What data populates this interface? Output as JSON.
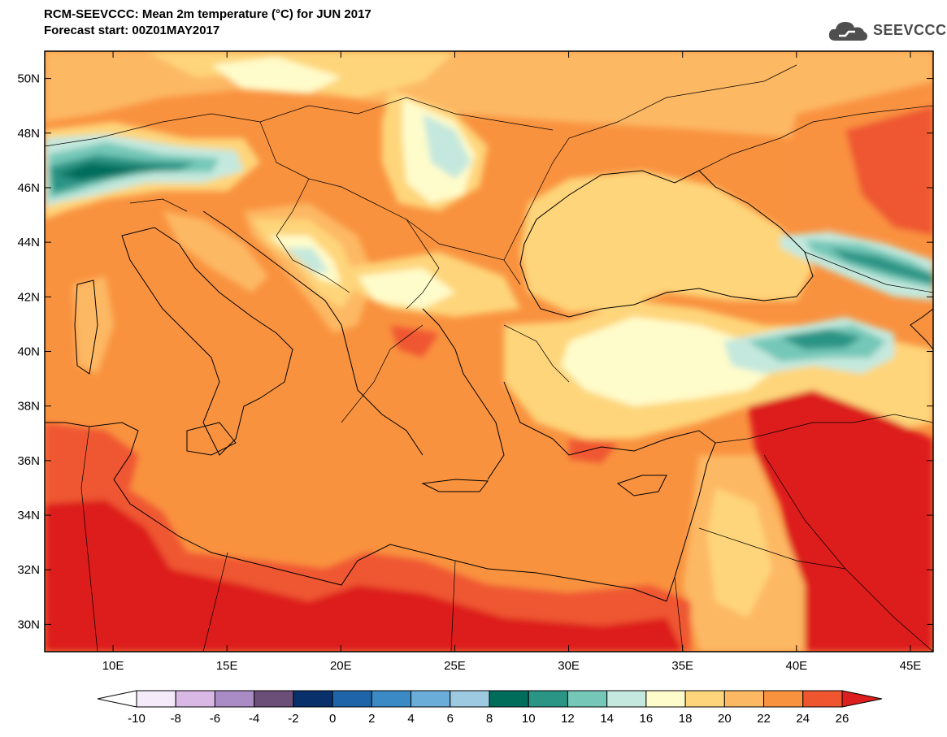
{
  "title": {
    "line1": "RCM-SEEVCCC: Mean 2m temperature (°C) for JUN 2017",
    "line2": "Forecast start: 00Z01MAY2017"
  },
  "logo": {
    "text": "SEEVCCC",
    "icon": "cloud-icon"
  },
  "map": {
    "lon_range": [
      7,
      46
    ],
    "lat_range": [
      29,
      51
    ],
    "lat_ticks": [
      {
        "value": 50,
        "label": "50N"
      },
      {
        "value": 48,
        "label": "48N"
      },
      {
        "value": 46,
        "label": "46N"
      },
      {
        "value": 44,
        "label": "44N"
      },
      {
        "value": 42,
        "label": "42N"
      },
      {
        "value": 40,
        "label": "40N"
      },
      {
        "value": 38,
        "label": "38N"
      },
      {
        "value": 36,
        "label": "36N"
      },
      {
        "value": 34,
        "label": "34N"
      },
      {
        "value": 32,
        "label": "32N"
      },
      {
        "value": 30,
        "label": "30N"
      }
    ],
    "lon_ticks": [
      {
        "value": 10,
        "label": "10E"
      },
      {
        "value": 15,
        "label": "15E"
      },
      {
        "value": 20,
        "label": "20E"
      },
      {
        "value": 25,
        "label": "25E"
      },
      {
        "value": 30,
        "label": "30E"
      },
      {
        "value": 35,
        "label": "35E"
      },
      {
        "value": 40,
        "label": "40E"
      },
      {
        "value": 45,
        "label": "45E"
      }
    ],
    "background_color": "#f9923f"
  },
  "colorbar": {
    "labels": [
      "-10",
      "-8",
      "-6",
      "-4",
      "-2",
      "0",
      "2",
      "4",
      "6",
      "8",
      "10",
      "12",
      "14",
      "16",
      "18",
      "20",
      "22",
      "24",
      "26"
    ],
    "under_color": "#ffffff",
    "over_color": "#dd1e1e",
    "colors": [
      "#f4eafa",
      "#d9b8e6",
      "#a98cc6",
      "#6b4f78",
      "#08306b",
      "#1e64a8",
      "#3b8ac6",
      "#6aadd8",
      "#9ecae1",
      "#006d5b",
      "#2a9485",
      "#75c8b8",
      "#c4e8dd",
      "#fffccb",
      "#fed57a",
      "#fdb863",
      "#f9923f",
      "#ef5630"
    ]
  }
}
